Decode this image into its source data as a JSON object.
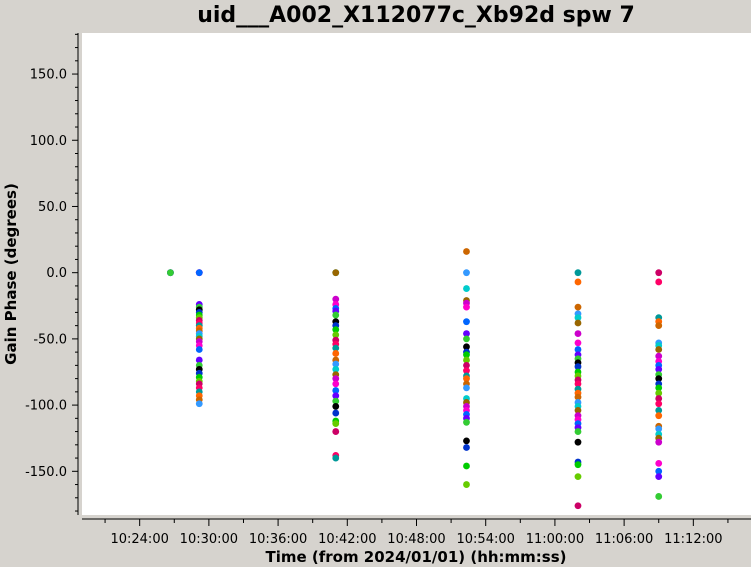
{
  "chart_data": {
    "type": "scatter",
    "title": "uid___A002_X112077c_Xb92d spw 7",
    "xlabel": "Time (from 2024/01/01) (hh:mm:ss)",
    "ylabel": "Gain Phase (degrees)",
    "xlim": [
      "10:19:00",
      "11:17:00"
    ],
    "ylim": [
      -183,
      181
    ],
    "x_ticks": [
      "10:24:00",
      "10:30:00",
      "10:36:00",
      "10:42:00",
      "10:48:00",
      "10:54:00",
      "11:00:00",
      "11:06:00",
      "11:12:00"
    ],
    "y_ticks": [
      "150.0",
      "100.0",
      "50.0",
      "0.0",
      "-50.0",
      "-100.0",
      "-150.0"
    ],
    "grid": false,
    "legend": "none",
    "colors": [
      "#0066ff",
      "#00cc00",
      "#ff6600",
      "#cc00cc",
      "#000000",
      "#ff0066",
      "#00cccc",
      "#6600ff",
      "#66cc00",
      "#cc6600",
      "#ff00cc",
      "#0033cc",
      "#009999",
      "#996600",
      "#33cc33",
      "#cc0066",
      "#3399ff"
    ],
    "groups": [
      {
        "time": "10:26:40",
        "values": [
          0,
          0,
          0
        ]
      },
      {
        "time": "10:29:10",
        "values": [
          0,
          0,
          0,
          -24,
          -26,
          -28,
          -30,
          -32,
          -34,
          -36,
          -38,
          -40,
          -42,
          -44,
          -46,
          -48,
          -50,
          -52,
          -55,
          -58,
          -66,
          -70,
          -73,
          -76,
          -79,
          -82,
          -84,
          -87,
          -90,
          -93,
          -96,
          -99
        ]
      },
      {
        "time": "10:41:00",
        "values": [
          0,
          0,
          -20,
          -24,
          -27,
          -29,
          -32,
          -37,
          -40,
          -43,
          -47,
          -51,
          -54,
          -57,
          -61,
          -66,
          -69,
          -73,
          -77,
          -80,
          -84,
          -89,
          -93,
          -97,
          -101,
          -106,
          -112,
          -114,
          -120,
          -138,
          -140
        ]
      },
      {
        "time": "10:52:20",
        "values": [
          16,
          0,
          -12,
          -21,
          -23,
          -26,
          -37,
          -46,
          -50,
          -56,
          -60,
          -62,
          -66,
          -70,
          -74,
          -78,
          -80,
          -84,
          -87,
          -95,
          -98,
          -101,
          -104,
          -107,
          -110,
          -113,
          -127,
          -132,
          -146,
          -160
        ]
      },
      {
        "time": "11:02:00",
        "values": [
          0,
          -7,
          -26,
          -31,
          -34,
          -38,
          -46,
          -53,
          -58,
          -62,
          -65,
          -68,
          -71,
          -75,
          -78,
          -81,
          -84,
          -88,
          -91,
          -94,
          -98,
          -101,
          -104,
          -108,
          -111,
          -114,
          -117,
          -120,
          -128,
          -143,
          -145,
          -154,
          -176
        ]
      },
      {
        "time": "11:09:00",
        "values": [
          0,
          -7,
          -34,
          -37,
          -40,
          -53,
          -55,
          -58,
          -63,
          -67,
          -70,
          -73,
          -77,
          -80,
          -84,
          -87,
          -91,
          -95,
          -99,
          -104,
          -108,
          -116,
          -118,
          -122,
          -125,
          -128,
          -144,
          -150,
          -154,
          -169
        ]
      }
    ]
  }
}
